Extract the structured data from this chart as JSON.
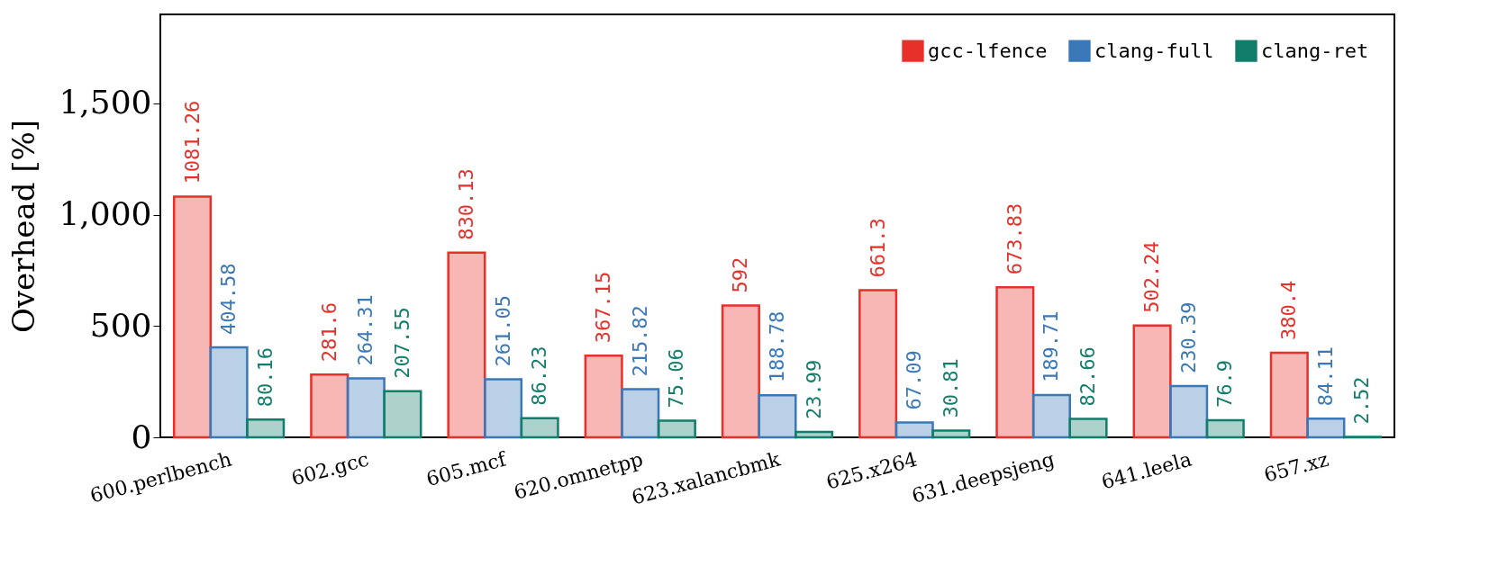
{
  "chart_data": {
    "type": "bar",
    "ylabel": "Overhead [%]",
    "categories": [
      "600.perlbench",
      "602.gcc",
      "605.mcf",
      "620.omnetpp",
      "623.xalancbmk",
      "625.x264",
      "631.deepsjeng",
      "641.leela",
      "657.xz"
    ],
    "series": [
      {
        "name": "gcc-lfence",
        "color": "#e8302b",
        "values": [
          1081.26,
          281.6,
          830.13,
          367.15,
          592,
          661.3,
          673.83,
          502.24,
          380.4
        ]
      },
      {
        "name": "clang-full",
        "color": "#3a78b8",
        "values": [
          404.58,
          264.31,
          261.05,
          215.82,
          188.78,
          67.09,
          189.71,
          230.39,
          84.11
        ]
      },
      {
        "name": "clang-ret",
        "color": "#137d6b",
        "values": [
          80.16,
          207.55,
          86.23,
          75.06,
          23.99,
          30.81,
          82.66,
          76.9,
          2.52
        ]
      }
    ],
    "ylim": [
      0,
      1900
    ],
    "yticks": [
      0,
      500,
      {
        "value": 1000,
        "label": "1,000"
      },
      {
        "value": 1500,
        "label": "1,500"
      }
    ],
    "grid": false,
    "legend": "top right",
    "data_labels": true
  }
}
